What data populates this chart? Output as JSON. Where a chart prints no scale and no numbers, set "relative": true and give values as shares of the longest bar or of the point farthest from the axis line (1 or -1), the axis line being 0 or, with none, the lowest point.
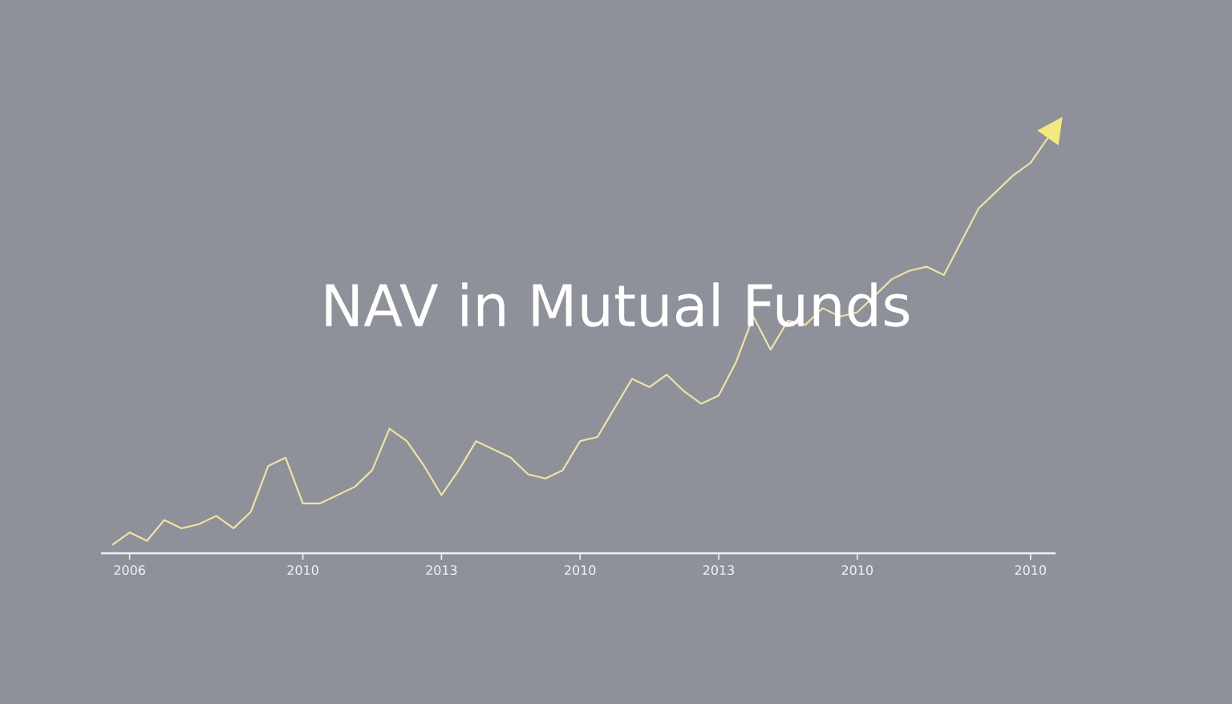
{
  "chart_data": {
    "type": "line",
    "title": "NAV in Mutual Funds",
    "relative": true,
    "color": "#efe2a8",
    "categories": [
      null,
      "2006",
      null,
      null,
      null,
      null,
      null,
      null,
      null,
      null,
      null,
      "2010",
      null,
      null,
      null,
      null,
      null,
      null,
      null,
      "2013",
      null,
      null,
      null,
      null,
      null,
      null,
      null,
      "2010",
      null,
      null,
      null,
      null,
      null,
      null,
      null,
      "2013",
      null,
      null,
      null,
      null,
      null,
      null,
      null,
      "2010",
      null,
      null,
      null,
      null,
      null,
      null,
      null,
      null,
      null,
      "2010",
      null
    ],
    "values": [
      0.02,
      0.05,
      0.03,
      0.08,
      0.06,
      0.07,
      0.09,
      0.06,
      0.1,
      0.21,
      0.23,
      0.12,
      0.12,
      0.14,
      0.16,
      0.2,
      0.3,
      0.27,
      0.21,
      0.14,
      0.2,
      0.27,
      0.25,
      0.23,
      0.19,
      0.18,
      0.2,
      0.27,
      0.28,
      0.35,
      0.42,
      0.4,
      0.43,
      0.39,
      0.36,
      0.38,
      0.46,
      0.57,
      0.49,
      0.56,
      0.55,
      0.59,
      0.57,
      0.58,
      0.62,
      0.66,
      0.68,
      0.69,
      0.67,
      0.75,
      0.83,
      0.87,
      0.91,
      0.94,
      1
    ]
  }
}
